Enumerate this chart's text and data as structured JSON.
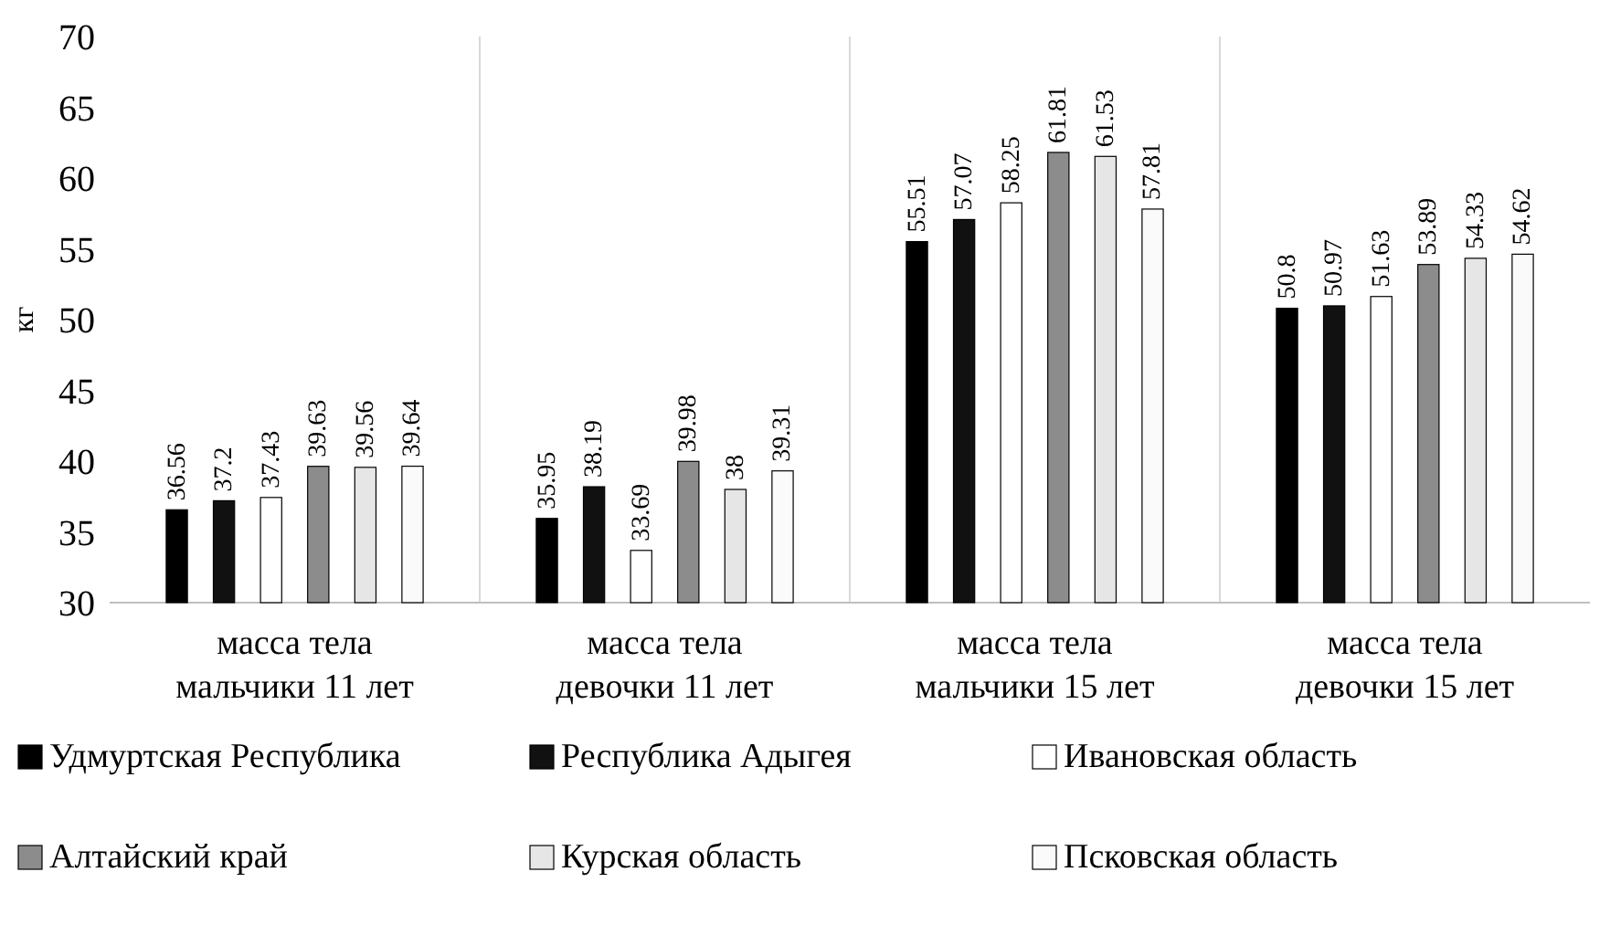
{
  "chart_data": {
    "type": "bar",
    "ylabel": "кг",
    "categories": [
      "масса тела мальчики 11 лет",
      "масса тела девочки 11 лет",
      "масса тела мальчики 15 лет",
      "масса тела девочки 15 лет"
    ],
    "series": [
      {
        "name": "Удмуртская Республика",
        "color": "#000000",
        "values": [
          36.56,
          35.95,
          55.51,
          50.8
        ]
      },
      {
        "name": "Республика Адыгея",
        "color": "#111111",
        "values": [
          37.2,
          38.19,
          57.07,
          50.97
        ]
      },
      {
        "name": "Ивановская область",
        "color": "#ffffff",
        "values": [
          37.43,
          33.69,
          58.25,
          51.63
        ]
      },
      {
        "name": "Алтайский край",
        "color": "#8c8c8c",
        "values": [
          39.63,
          39.98,
          61.81,
          53.89
        ]
      },
      {
        "name": "Курская область",
        "color": "#e6e6e6",
        "values": [
          39.56,
          38,
          61.53,
          54.33
        ]
      },
      {
        "name": "Псковская область",
        "color": "#fafafa",
        "values": [
          39.64,
          39.31,
          57.81,
          54.62
        ]
      }
    ],
    "ylim": [
      30,
      70
    ],
    "yticks": [
      30,
      35,
      40,
      45,
      50,
      55,
      60,
      65,
      70
    ],
    "grid": "x",
    "legend": "bottom",
    "data_labels": true
  }
}
